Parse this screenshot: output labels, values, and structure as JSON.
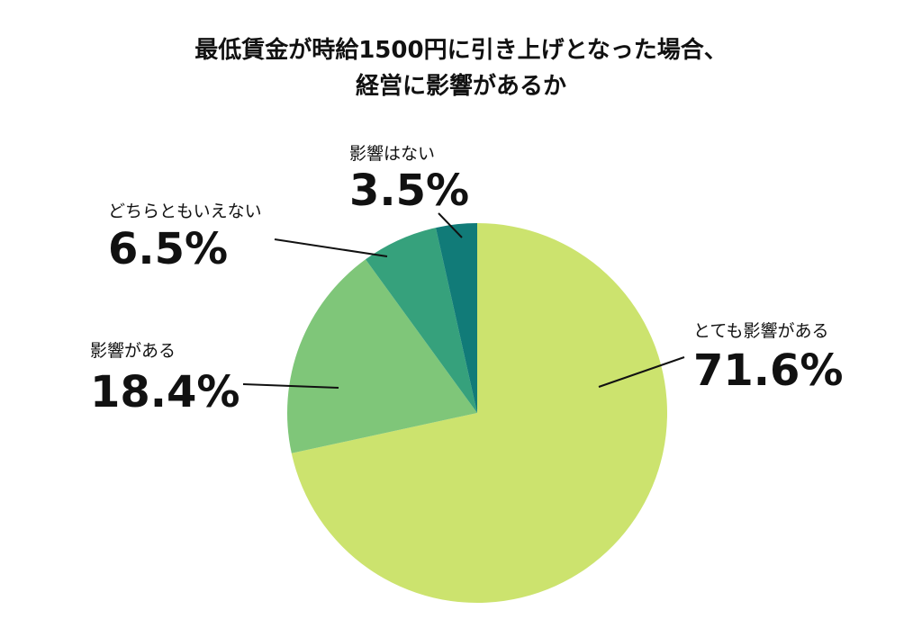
{
  "chart_data": {
    "type": "pie",
    "title_lines": [
      "最低賃金が時給1500円に引き上げとなった場合、",
      "経営に影響があるか"
    ],
    "unit": "%",
    "start_angle_deg": 0,
    "direction": "clockwise",
    "slices": [
      {
        "label": "とても影響がある",
        "value": 71.6,
        "display": "71.6%",
        "color": "#cce36e"
      },
      {
        "label": "影響がある",
        "value": 18.4,
        "display": "18.4%",
        "color": "#7fc679"
      },
      {
        "label": "どちらともいえない",
        "value": 6.5,
        "display": "6.5%",
        "color": "#36a17c"
      },
      {
        "label": "影響はない",
        "value": 3.5,
        "display": "3.5%",
        "color": "#117b78"
      }
    ],
    "legend": "none",
    "data_labels": "outside with leader lines"
  }
}
